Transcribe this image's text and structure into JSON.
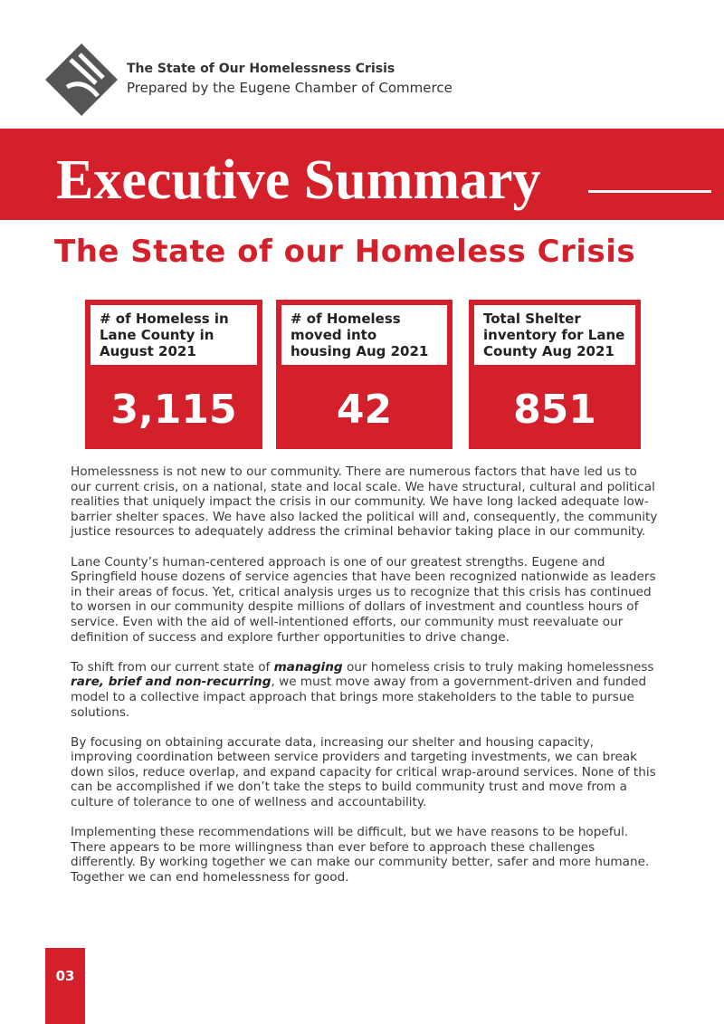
{
  "header": {
    "title": "The State of Our Homelessness Crisis",
    "subtitle": "Prepared by the Eugene Chamber of Commerce"
  },
  "banner": {
    "title": "Executive Summary"
  },
  "section_title": "The State of our Homeless Crisis",
  "stats": [
    {
      "label": "# of Homeless in Lane County in August 2021",
      "value": "3,115"
    },
    {
      "label": "# of Homeless moved into housing Aug 2021",
      "value": "42"
    },
    {
      "label": "Total Shelter inventory for Lane County Aug 2021",
      "value": "851"
    }
  ],
  "paragraphs": [
    [
      "Homelessness is not new to our community. There are numerous factors that have led us to our current crisis, on a national, state and local scale. We have structural, cultural and political realities that uniquely impact the crisis in our community. We have long lacked adequate low-barrier shelter spaces. We have also lacked the political will and, consequently, the community justice resources to adequately address the criminal behavior taking place in our community."
    ],
    [
      "Lane County’s human-centered approach is one of our greatest strengths. Eugene and Springfield house dozens of service agencies that have been recognized nationwide as leaders in their areas of focus. Yet, critical analysis urges us to recognize that this crisis has continued to worsen in our community despite millions of dollars of investment and countless hours of service. Even with the aid of well-intentioned efforts, our community must reevaluate our definition of success and explore further opportunities to drive change."
    ],
    [
      "To shift from our current state of ",
      {
        "em": "managing"
      },
      " our homeless crisis to truly making homelessness ",
      {
        "em": "rare, brief and non-recurring"
      },
      ", we must move away from a government-driven and funded model to a collective impact approach that brings more stakeholders to the table to pursue solutions."
    ],
    [
      "By focusing on obtaining accurate data, increasing our shelter and housing capacity, improving coordination between service providers and targeting investments, we can break down silos, reduce overlap, and expand capacity for critical wrap-around services. None of this can be accomplished if we don’t take the steps to build community trust and move from a culture of tolerance to one of wellness and accountability."
    ],
    [
      "Implementing these recommendations will be difficult, but we have reasons to be hopeful. There appears to be more willingness than ever before to approach these challenges differently. By working together we can make our community better, safer and more humane. Together we can end homelessness for good."
    ]
  ],
  "page_number": "03"
}
